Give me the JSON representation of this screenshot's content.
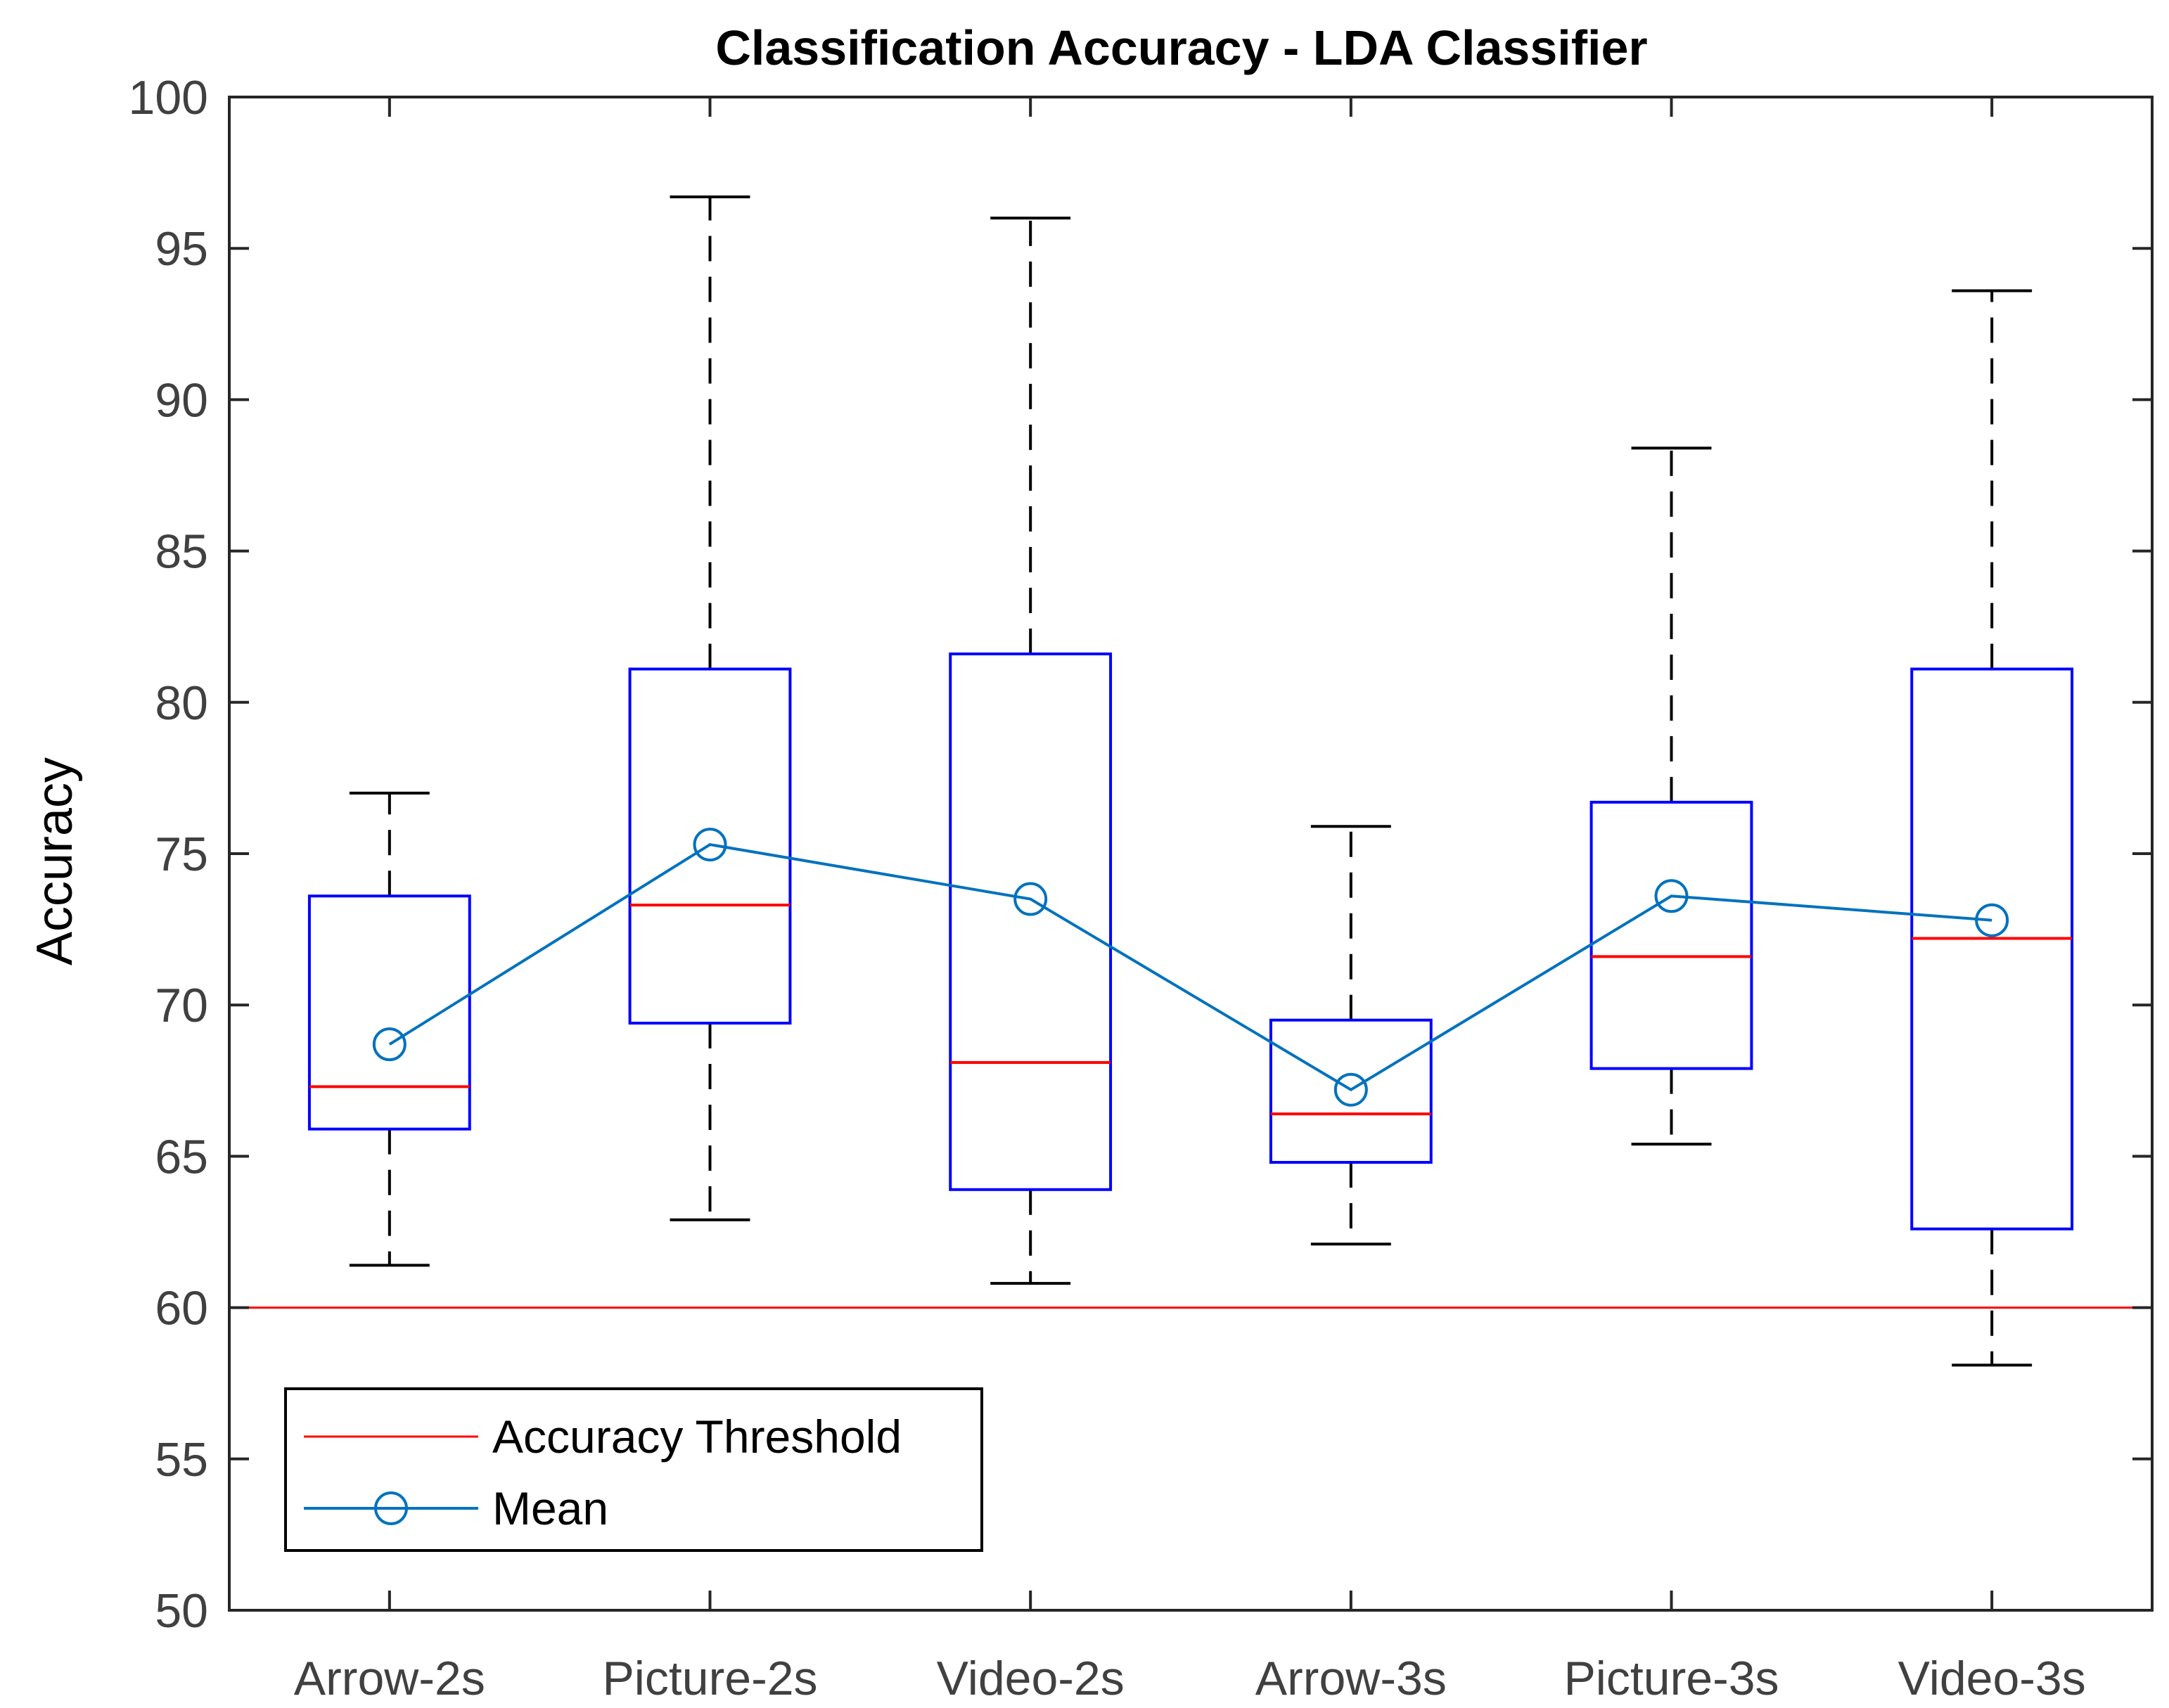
{
  "chart_data": {
    "type": "box",
    "title": "Classification Accuracy - LDA Classifier",
    "xlabel": "",
    "ylabel": "Accuracy",
    "ylim": [
      50,
      100
    ],
    "yticks": [
      "50",
      "55",
      "60",
      "65",
      "70",
      "75",
      "80",
      "85",
      "90",
      "95",
      "100"
    ],
    "ytick_values": [
      50,
      55,
      60,
      65,
      70,
      75,
      80,
      85,
      90,
      95,
      100
    ],
    "categories": [
      "Arrow-2s",
      "Picture-2s",
      "Video-2s",
      "Arrow-3s",
      "Picture-3s",
      "Video-3s"
    ],
    "boxes": [
      {
        "min": 61.4,
        "q1": 65.9,
        "median": 67.3,
        "q3": 73.6,
        "max": 77.0
      },
      {
        "min": 62.9,
        "q1": 69.4,
        "median": 73.3,
        "q3": 81.1,
        "max": 96.7
      },
      {
        "min": 60.8,
        "q1": 63.9,
        "median": 68.1,
        "q3": 81.6,
        "max": 96.0
      },
      {
        "min": 62.1,
        "q1": 64.8,
        "median": 66.4,
        "q3": 69.5,
        "max": 75.9
      },
      {
        "min": 65.4,
        "q1": 67.9,
        "median": 71.6,
        "q3": 76.7,
        "max": 88.4
      },
      {
        "min": 58.1,
        "q1": 62.6,
        "median": 72.2,
        "q3": 81.1,
        "max": 93.6
      }
    ],
    "mean_values": [
      68.7,
      75.3,
      73.5,
      67.2,
      73.6,
      72.8
    ],
    "threshold": 60,
    "legend": {
      "position": "bottom-left",
      "entries": [
        "Accuracy Threshold",
        "Mean"
      ]
    },
    "colors": {
      "box": "#0000ff",
      "median": "#ff0000",
      "whisker": "#000000",
      "mean": "#0072bd",
      "threshold": "#ff0000"
    }
  }
}
